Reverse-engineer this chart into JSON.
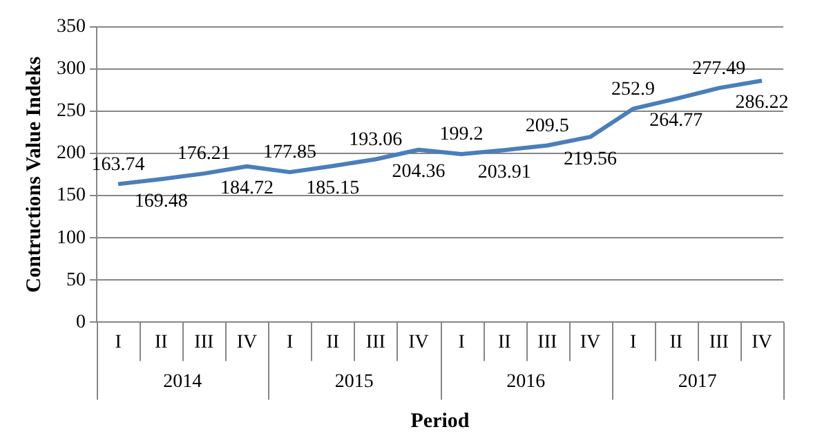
{
  "chart_data": {
    "type": "line",
    "xlabel": "Period",
    "ylabel": "Contructions Value Indeks",
    "categories": [
      "I",
      "II",
      "III",
      "IV",
      "I",
      "II",
      "III",
      "IV",
      "I",
      "II",
      "III",
      "IV",
      "I",
      "II",
      "III",
      "IV"
    ],
    "series": [
      {
        "color": "#4a7ebb",
        "values": [
          163.74,
          169.48,
          176.21,
          184.72,
          177.85,
          185.15,
          193.06,
          204.36,
          199.2,
          203.91,
          209.5,
          219.56,
          252.9,
          264.77,
          277.49,
          286.22
        ]
      }
    ],
    "annotations": [
      "2014",
      "2015",
      "2016",
      "2017"
    ],
    "ylim": [
      0,
      350
    ],
    "yticks": [
      0,
      50,
      100,
      150,
      200,
      250,
      300,
      350
    ],
    "grid": "y",
    "legend": false,
    "marker": "none",
    "line_style": "solid",
    "data_labels": true
  }
}
